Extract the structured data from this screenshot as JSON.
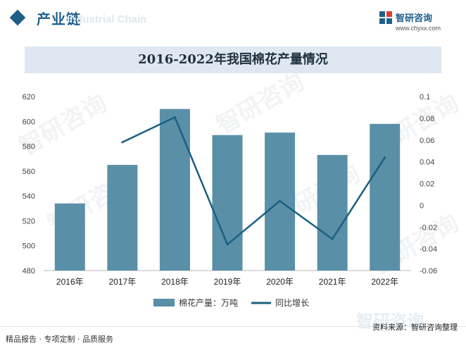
{
  "header": {
    "title": "产业链",
    "watermark": "Industrial Chain"
  },
  "brand": {
    "name": "智研咨询",
    "url": "www.chyxx.com",
    "primary_color": "#1f5f8b"
  },
  "footer": {
    "left_text": "精品报告 · 专项定制 · 品质服务",
    "source": "资料来源：智研咨询整理",
    "watermark": "智研咨询"
  },
  "watermarks": [
    "智研咨询",
    "智研咨询",
    "智研咨询",
    "智研咨询",
    "智研咨询",
    "智研咨询"
  ],
  "chart_data": {
    "type": "bar",
    "title": "2016-2022年我国棉花产量情况",
    "categories": [
      "2016年",
      "2017年",
      "2018年",
      "2019年",
      "2020年",
      "2021年",
      "2022年"
    ],
    "series": [
      {
        "name": "棉花产量：万吨",
        "type": "bar",
        "axis": "left",
        "color": "#5a8fa8",
        "values": [
          534,
          565,
          610,
          589,
          591,
          573,
          598
        ]
      },
      {
        "name": "同比增长",
        "type": "line",
        "axis": "right",
        "color": "#1a6080",
        "values": [
          null,
          0.058,
          0.081,
          -0.036,
          0.004,
          -0.031,
          0.044
        ]
      }
    ],
    "y_left": {
      "min": 480,
      "max": 620,
      "ticks": [
        "480",
        "500",
        "520",
        "540",
        "560",
        "580",
        "600",
        "620"
      ]
    },
    "y_right": {
      "min": -0.06,
      "max": 0.1,
      "ticks": [
        "-0.06",
        "-0.04",
        "-0.02",
        "0",
        "0.02",
        "0.04",
        "0.06",
        "0.08",
        "0.1"
      ]
    },
    "grid": false,
    "legend_position": "bottom"
  }
}
